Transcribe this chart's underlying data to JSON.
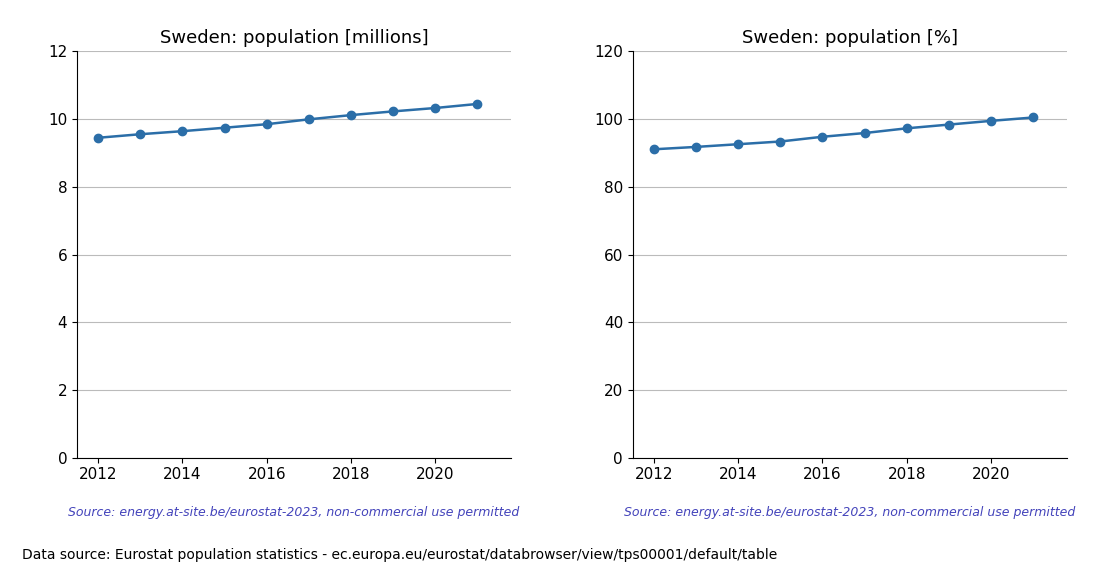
{
  "years": [
    2012,
    2013,
    2014,
    2015,
    2016,
    2017,
    2018,
    2019,
    2020,
    2021
  ],
  "pop_millions": [
    9.45,
    9.555,
    9.645,
    9.747,
    9.851,
    9.995,
    10.12,
    10.23,
    10.33,
    10.45
  ],
  "pop_percent": [
    91.1,
    91.8,
    92.6,
    93.4,
    94.8,
    95.9,
    97.3,
    98.4,
    99.5,
    100.5
  ],
  "title_millions": "Sweden: population [millions]",
  "title_percent": "Sweden: population [%]",
  "source_text": "Source: energy.at-site.be/eurostat-2023, non-commercial use permitted",
  "footer_text": "Data source: Eurostat population statistics - ec.europa.eu/eurostat/databrowser/view/tps00001/default/table",
  "source_color": "#4444bb",
  "footer_color": "#000000",
  "line_color": "#2b6ea8",
  "marker_color": "#2b6ea8",
  "ylim_millions": [
    0,
    12
  ],
  "ylim_percent": [
    0,
    120
  ],
  "yticks_millions": [
    0,
    2,
    4,
    6,
    8,
    10,
    12
  ],
  "yticks_percent": [
    0,
    20,
    40,
    60,
    80,
    100,
    120
  ],
  "xlim": [
    2011.5,
    2021.8
  ],
  "xticks": [
    2012,
    2014,
    2016,
    2018,
    2020
  ],
  "grid_color": "#bbbbbb",
  "background_color": "#ffffff",
  "title_fontsize": 13,
  "source_fontsize": 9,
  "footer_fontsize": 10,
  "tick_fontsize": 11
}
